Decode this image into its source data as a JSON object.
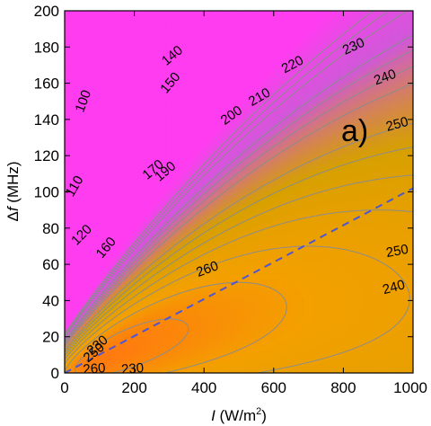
{
  "chart_data": {
    "type": "heatmap",
    "subtype": "filled-contour",
    "title": "",
    "panel_label": "a)",
    "xlabel": {
      "italic": "I",
      "text": " (W/m",
      "sup": "2",
      "close": ")"
    },
    "ylabel": {
      "prefix": "Δ",
      "italic": "f",
      "text": " (MHz)"
    },
    "xlim": [
      0,
      1000
    ],
    "ylim": [
      0,
      200
    ],
    "x_ticks": [
      0,
      200,
      400,
      600,
      800,
      1000
    ],
    "y_ticks": [
      0,
      20,
      40,
      60,
      80,
      100,
      120,
      140,
      160,
      180,
      200
    ],
    "grid": false,
    "legend": "none",
    "z_range": [
      60,
      265
    ],
    "contour_levels": [
      100,
      110,
      120,
      140,
      150,
      160,
      170,
      190,
      200,
      210,
      220,
      230,
      240,
      250,
      260
    ],
    "contour_labels": [
      {
        "text": "100",
        "x": 55,
        "y": 150,
        "angle": -70
      },
      {
        "text": "140",
        "x": 310,
        "y": 175,
        "angle": -40
      },
      {
        "text": "150",
        "x": 305,
        "y": 160,
        "angle": -50
      },
      {
        "text": "200",
        "x": 480,
        "y": 142,
        "angle": -35
      },
      {
        "text": "210",
        "x": 560,
        "y": 152,
        "angle": -30
      },
      {
        "text": "220",
        "x": 655,
        "y": 170,
        "angle": -28
      },
      {
        "text": "230",
        "x": 830,
        "y": 180,
        "angle": -25
      },
      {
        "text": "240",
        "x": 920,
        "y": 163,
        "angle": -20
      },
      {
        "text": "250",
        "x": 955,
        "y": 137,
        "angle": -15
      },
      {
        "text": "110",
        "x": 30,
        "y": 103,
        "angle": -60
      },
      {
        "text": "120",
        "x": 50,
        "y": 76,
        "angle": -45
      },
      {
        "text": "160",
        "x": 120,
        "y": 69,
        "angle": -50
      },
      {
        "text": "170",
        "x": 255,
        "y": 112,
        "angle": -40
      },
      {
        "text": "190",
        "x": 290,
        "y": 111,
        "angle": -40
      },
      {
        "text": "260",
        "x": 410,
        "y": 57,
        "angle": -20
      },
      {
        "text": "250",
        "x": 955,
        "y": 67,
        "angle": -10
      },
      {
        "text": "240",
        "x": 945,
        "y": 47,
        "angle": -15
      },
      {
        "text": "230",
        "x": 95,
        "y": 15,
        "angle": -40
      },
      {
        "text": "250",
        "x": 85,
        "y": 11,
        "angle": -40
      },
      {
        "text": "260",
        "x": 85,
        "y": 2,
        "angle": -5
      },
      {
        "text": "230",
        "x": 195,
        "y": 2,
        "angle": -5
      }
    ],
    "ridge_line": {
      "style": "dashed",
      "color": "#4b55d6",
      "points": [
        [
          0,
          0
        ],
        [
          1000,
          102
        ]
      ]
    },
    "colors": {
      "low": "#ff3cf0",
      "mid_low": "#d058d8",
      "mid": "#d6a000",
      "high": "#f3a000",
      "peak": "#ff7a10",
      "contour_line": "#8c8c8c",
      "ridge": "#4b55d6"
    }
  }
}
